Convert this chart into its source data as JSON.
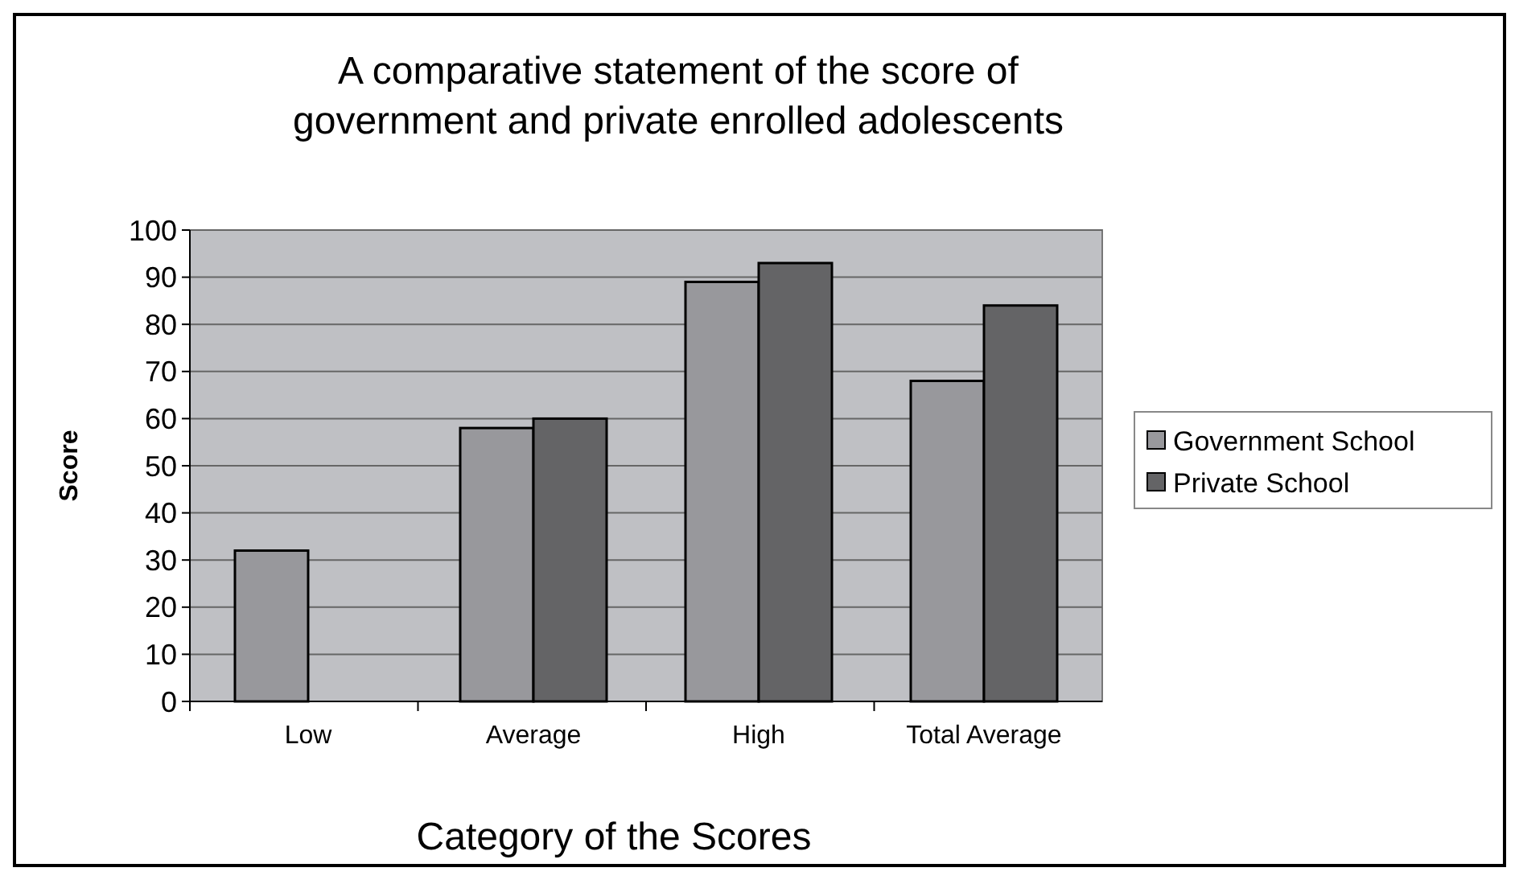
{
  "chart_data": {
    "type": "bar",
    "title": "A comparative statement of the score of government and private enrolled adolescents",
    "xlabel": "Category of the Scores",
    "ylabel": "Score",
    "categories": [
      "Low",
      "Average",
      "High",
      "Total Average"
    ],
    "series": [
      {
        "name": "Government School",
        "color": "#98989c",
        "values": [
          32,
          58,
          89,
          68
        ]
      },
      {
        "name": "Private School",
        "color": "#646466",
        "values": [
          null,
          60,
          93,
          84
        ]
      }
    ],
    "ylim": [
      0,
      100
    ],
    "yticks": [
      0,
      10,
      20,
      30,
      40,
      50,
      60,
      70,
      80,
      90,
      100
    ],
    "grid": "y",
    "legend": "right"
  }
}
